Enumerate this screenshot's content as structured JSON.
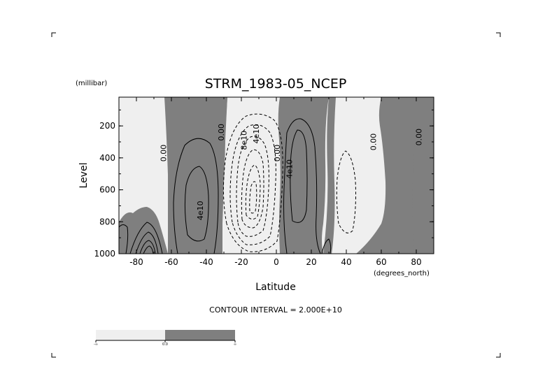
{
  "chart_data": {
    "type": "contour",
    "title": "STRM_1983-05_NCEP",
    "ylabel": "Level",
    "yunits": "(millibar)",
    "xlabel": "Latitude",
    "xunits": "(degrees_north)",
    "xlim": [
      -90,
      90
    ],
    "ylim": [
      1000,
      20
    ],
    "y_inverted": true,
    "xticks": [
      -80,
      -60,
      -40,
      -20,
      0,
      20,
      40,
      60,
      80
    ],
    "xtick_labels": [
      "-80",
      "-60",
      "-40",
      "-20",
      "0",
      "20",
      "40",
      "60",
      "80"
    ],
    "yticks": [
      200,
      400,
      600,
      800,
      1000
    ],
    "ytick_labels": [
      "200",
      "400",
      "600",
      "800",
      "1000"
    ],
    "contour_interval_text": "CONTOUR INTERVAL = 2.000E+10",
    "contour_interval": 20000000000,
    "contour_labels": [
      {
        "text": "0.00",
        "x": -63,
        "y": 370
      },
      {
        "text": "4e10",
        "x": -42,
        "y": 730
      },
      {
        "text": "0.00",
        "x": -30,
        "y": 240
      },
      {
        "text": "8e10",
        "x": -17,
        "y": 290
      },
      {
        "text": "4e10",
        "x": -10,
        "y": 250
      },
      {
        "text": "0.00",
        "x": 2,
        "y": 370
      },
      {
        "text": "4e10",
        "x": 9,
        "y": 470
      },
      {
        "text": "0.00",
        "x": 57,
        "y": 300
      },
      {
        "text": "0.00",
        "x": 83,
        "y": 270
      }
    ],
    "features": [
      {
        "name": "southern positive cell",
        "center_lat": -42,
        "center_level": 620,
        "peak": 40000000000,
        "sign": "positive"
      },
      {
        "name": "southern negative cell",
        "center_lat": -15,
        "center_level": 650,
        "peak": -120000000000,
        "sign": "negative"
      },
      {
        "name": "northern positive cell",
        "center_lat": 12,
        "center_level": 500,
        "peak": 40000000000,
        "sign": "positive"
      },
      {
        "name": "northern weak negative cell",
        "center_lat": 42,
        "center_level": 570,
        "peak": -20000000000,
        "sign": "negative"
      },
      {
        "name": "polar positive cell",
        "center_lat": -75,
        "center_level": 960,
        "peak": 100000000000,
        "sign": "positive"
      }
    ],
    "fill_colors": {
      "negative": "#efefef",
      "positive": "#7f7f7f"
    },
    "colorbar": {
      "labels": [
        "-∞",
        "0.0",
        "∞"
      ],
      "colors": [
        "#efefef",
        "#7f7f7f"
      ]
    },
    "grid": false,
    "legend": "colorbar bottom-left"
  }
}
